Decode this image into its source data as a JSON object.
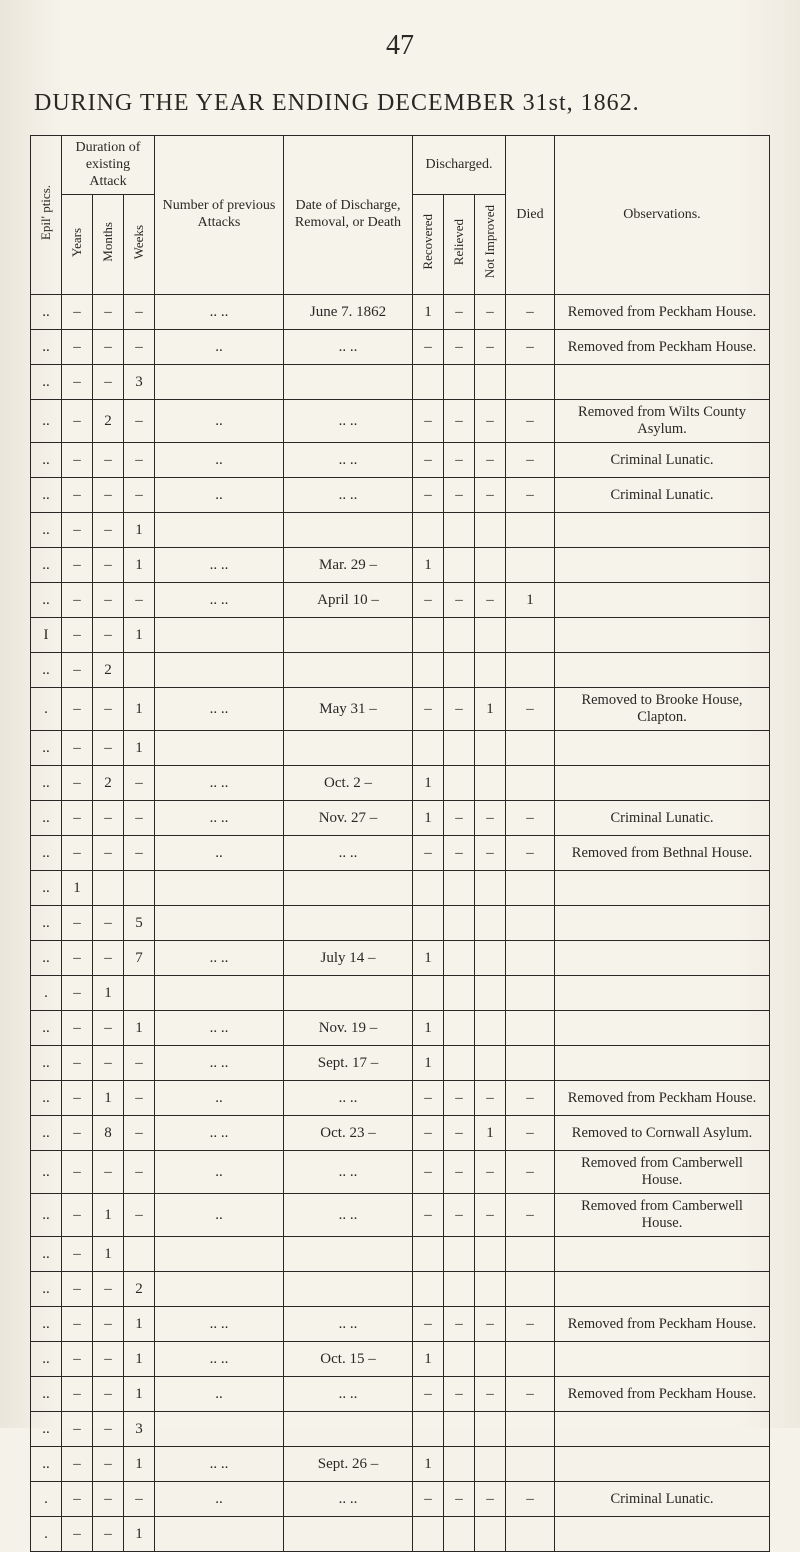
{
  "page_number": "47",
  "title_prefix": "DURING THE YEAR ENDING DECEMBER ",
  "title_suffix": "31st, 1862.",
  "headers": {
    "epilptics": "Epil' ptics.",
    "duration": "Duration of existing Attack",
    "years": "Years",
    "months": "Months",
    "weeks": "Weeks",
    "number": "Number of previous Attacks",
    "date": "Date of Discharge, Removal, or Death",
    "discharged": "Discharged.",
    "recovered": "Recovered",
    "relieved": "Relieved",
    "notimp": "Not Improved",
    "died": "Died",
    "obs": "Observations."
  },
  "rows": [
    {
      "ep": "..",
      "y": "–",
      "m": "–",
      "w": "–",
      "num": ".. ..",
      "date": "June 7. 1862",
      "rec": "1",
      "rel": "–",
      "ni": "–",
      "died": "–",
      "obs": "Removed from Peckham House."
    },
    {
      "ep": "..",
      "y": "–",
      "m": "–",
      "w": "–",
      "num": "..",
      "date": ".. ..",
      "rec": "–",
      "rel": "–",
      "ni": "–",
      "died": "–",
      "obs": "Removed from Peckham House."
    },
    {
      "ep": "..",
      "y": "–",
      "m": "–",
      "w": "3",
      "num": "",
      "date": "",
      "rec": "",
      "rel": "",
      "ni": "",
      "died": "",
      "obs": ""
    },
    {
      "ep": "..",
      "y": "–",
      "m": "2",
      "w": "–",
      "num": "..",
      "date": ".. ..",
      "rec": "–",
      "rel": "–",
      "ni": "–",
      "died": "–",
      "obs": "Removed from Wilts County Asylum."
    },
    {
      "ep": "..",
      "y": "–",
      "m": "–",
      "w": "–",
      "num": "..",
      "date": ".. ..",
      "rec": "–",
      "rel": "–",
      "ni": "–",
      "died": "–",
      "obs": "Criminal Lunatic."
    },
    {
      "ep": "..",
      "y": "–",
      "m": "–",
      "w": "–",
      "num": "..",
      "date": ".. ..",
      "rec": "–",
      "rel": "–",
      "ni": "–",
      "died": "–",
      "obs": "Criminal Lunatic."
    },
    {
      "ep": "..",
      "y": "–",
      "m": "–",
      "w": "1",
      "num": "",
      "date": "",
      "rec": "",
      "rel": "",
      "ni": "",
      "died": "",
      "obs": ""
    },
    {
      "ep": "..",
      "y": "–",
      "m": "–",
      "w": "1",
      "num": ".. ..",
      "date": "Mar. 29  –",
      "rec": "1",
      "rel": "",
      "ni": "",
      "died": "",
      "obs": ""
    },
    {
      "ep": "..",
      "y": "–",
      "m": "–",
      "w": "–",
      "num": ".. ..",
      "date": "April 10  –",
      "rec": "–",
      "rel": "–",
      "ni": "–",
      "died": "1",
      "obs": ""
    },
    {
      "ep": "I",
      "y": "–",
      "m": "–",
      "w": "1",
      "num": "",
      "date": "",
      "rec": "",
      "rel": "",
      "ni": "",
      "died": "",
      "obs": ""
    },
    {
      "ep": "..",
      "y": "–",
      "m": "2",
      "w": "",
      "num": "",
      "date": "",
      "rec": "",
      "rel": "",
      "ni": "",
      "died": "",
      "obs": ""
    },
    {
      "ep": ".",
      "y": "–",
      "m": "–",
      "w": "1",
      "num": ".. ..",
      "date": "May 31  –",
      "rec": "–",
      "rel": "–",
      "ni": "1",
      "died": "–",
      "obs": "Removed to Brooke House, Clapton."
    },
    {
      "ep": "..",
      "y": "–",
      "m": "–",
      "w": "1",
      "num": "",
      "date": "",
      "rec": "",
      "rel": "",
      "ni": "",
      "died": "",
      "obs": ""
    },
    {
      "ep": "..",
      "y": "–",
      "m": "2",
      "w": "–",
      "num": ".. ..",
      "date": "Oct.  2  –",
      "rec": "1",
      "rel": "",
      "ni": "",
      "died": "",
      "obs": ""
    },
    {
      "ep": "..",
      "y": "–",
      "m": "–",
      "w": "–",
      "num": ".. ..",
      "date": "Nov. 27  –",
      "rec": "1",
      "rel": "–",
      "ni": "–",
      "died": "–",
      "obs": "Criminal Lunatic."
    },
    {
      "ep": "..",
      "y": "–",
      "m": "–",
      "w": "–",
      "num": "..",
      "date": ".. ..",
      "rec": "–",
      "rel": "–",
      "ni": "–",
      "died": "–",
      "obs": "Removed from Bethnal House."
    },
    {
      "ep": "..",
      "y": "1",
      "m": "",
      "w": "",
      "num": "",
      "date": "",
      "rec": "",
      "rel": "",
      "ni": "",
      "died": "",
      "obs": ""
    },
    {
      "ep": "..",
      "y": "–",
      "m": "–",
      "w": "5",
      "num": "",
      "date": "",
      "rec": "",
      "rel": "",
      "ni": "",
      "died": "",
      "obs": ""
    },
    {
      "ep": "..",
      "y": "–",
      "m": "–",
      "w": "7",
      "num": ".. ..",
      "date": "July 14  –",
      "rec": "1",
      "rel": "",
      "ni": "",
      "died": "",
      "obs": ""
    },
    {
      "ep": ".",
      "y": "–",
      "m": "1",
      "w": "",
      "num": "",
      "date": "",
      "rec": "",
      "rel": "",
      "ni": "",
      "died": "",
      "obs": ""
    },
    {
      "ep": "..",
      "y": "–",
      "m": "–",
      "w": "1",
      "num": ".. ..",
      "date": "Nov. 19  –",
      "rec": "1",
      "rel": "",
      "ni": "",
      "died": "",
      "obs": ""
    },
    {
      "ep": "..",
      "y": "–",
      "m": "–",
      "w": "–",
      "num": ".. ..",
      "date": "Sept. 17  –",
      "rec": "1",
      "rel": "",
      "ni": "",
      "died": "",
      "obs": ""
    },
    {
      "ep": "..",
      "y": "–",
      "m": "1",
      "w": "–",
      "num": "..",
      "date": ".. ..",
      "rec": "–",
      "rel": "–",
      "ni": "–",
      "died": "–",
      "obs": "Removed from Peckham House."
    },
    {
      "ep": "..",
      "y": "–",
      "m": "8",
      "w": "–",
      "num": ".. ..",
      "date": "Oct. 23  –",
      "rec": "–",
      "rel": "–",
      "ni": "1",
      "died": "–",
      "obs": "Removed to Cornwall Asylum."
    },
    {
      "ep": "..",
      "y": "–",
      "m": "–",
      "w": "–",
      "num": "..",
      "date": ".. ..",
      "rec": "–",
      "rel": "–",
      "ni": "–",
      "died": "–",
      "obs": "Removed from Camberwell House."
    },
    {
      "ep": "..",
      "y": "–",
      "m": "1",
      "w": "–",
      "num": "..",
      "date": ".. ..",
      "rec": "–",
      "rel": "–",
      "ni": "–",
      "died": "–",
      "obs": "Removed from Camberwell House."
    },
    {
      "ep": "..",
      "y": "–",
      "m": "1",
      "w": "",
      "num": "",
      "date": "",
      "rec": "",
      "rel": "",
      "ni": "",
      "died": "",
      "obs": ""
    },
    {
      "ep": "..",
      "y": "–",
      "m": "–",
      "w": "2",
      "num": "",
      "date": "",
      "rec": "",
      "rel": "",
      "ni": "",
      "died": "",
      "obs": ""
    },
    {
      "ep": "..",
      "y": "–",
      "m": "–",
      "w": "1",
      "num": ".. ..",
      "date": ".. ..",
      "rec": "–",
      "rel": "–",
      "ni": "–",
      "died": "–",
      "obs": "Removed from Peckham House."
    },
    {
      "ep": "..",
      "y": "–",
      "m": "–",
      "w": "1",
      "num": ".. ..",
      "date": "Oct. 15  –",
      "rec": "1",
      "rel": "",
      "ni": "",
      "died": "",
      "obs": ""
    },
    {
      "ep": "..",
      "y": "–",
      "m": "–",
      "w": "1",
      "num": "..",
      "date": ".. ..",
      "rec": "–",
      "rel": "–",
      "ni": "–",
      "died": "–",
      "obs": "Removed from Peckham House."
    },
    {
      "ep": "..",
      "y": "–",
      "m": "–",
      "w": "3",
      "num": "",
      "date": "",
      "rec": "",
      "rel": "",
      "ni": "",
      "died": "",
      "obs": ""
    },
    {
      "ep": "..",
      "y": "–",
      "m": "–",
      "w": "1",
      "num": ".. ..",
      "date": "Sept. 26  –",
      "rec": "1",
      "rel": "",
      "ni": "",
      "died": "",
      "obs": ""
    },
    {
      "ep": ".",
      "y": "–",
      "m": "–",
      "w": "–",
      "num": "..",
      "date": ".. ..",
      "rec": "–",
      "rel": "–",
      "ni": "–",
      "died": "–",
      "obs": "Criminal Lunatic."
    },
    {
      "ep": ".",
      "y": "–",
      "m": "–",
      "w": "1",
      "num": "",
      "date": "",
      "rec": "",
      "rel": "",
      "ni": "",
      "died": "",
      "obs": ""
    }
  ]
}
